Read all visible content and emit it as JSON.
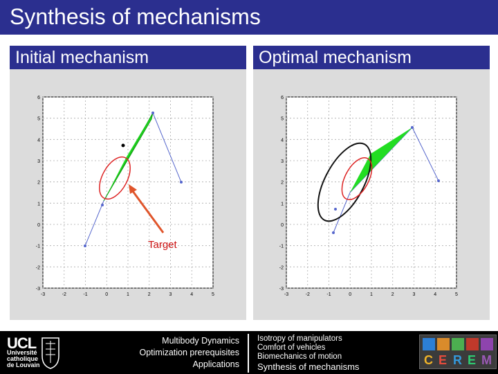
{
  "slide": {
    "title": "Synthesis of mechanisms",
    "left_heading": "Initial mechanism",
    "right_heading": "Optimal mechanism",
    "annotation": "Target"
  },
  "plots": {
    "left": {
      "x_ticks": [
        "-3",
        "-2",
        "-1",
        "0",
        "1",
        "2",
        "3",
        "4",
        "5"
      ],
      "y_ticks": [
        "6",
        "5",
        "4",
        "3",
        "2",
        "1",
        "0",
        "-1",
        "-2",
        "-3"
      ],
      "x_range": [
        -3,
        5
      ],
      "y_range": [
        -3,
        6
      ]
    },
    "right": {
      "x_ticks": [
        "-3",
        "-2",
        "-1",
        "0",
        "1",
        "2",
        "3",
        "4",
        "5"
      ],
      "y_ticks": [
        "6",
        "5",
        "4",
        "3",
        "2",
        "1",
        "0",
        "-1",
        "-2",
        "-3"
      ],
      "x_range": [
        -3,
        5
      ],
      "y_range": [
        -3,
        6
      ]
    }
  },
  "footer": {
    "ucl": "UCL",
    "university": [
      "Université",
      "catholique",
      "de Louvain"
    ],
    "center_links": [
      "Multibody Dynamics",
      "Optimization prerequisites",
      "Applications"
    ],
    "right_links": [
      "Isotropy of manipulators",
      "Comfort of vehicles",
      "Biomechanics of motion",
      "Synthesis of mechanisms"
    ],
    "logo_letters": [
      "C",
      "E",
      "R",
      "E",
      "M"
    ]
  },
  "colors": {
    "title_bar": "#2b2f8f",
    "panel": "#dcdcdc",
    "link_blue": "#3a4bb5",
    "coupler_green": "#22dd22",
    "target_red": "#dd2222",
    "arrow": "#e0552b"
  }
}
